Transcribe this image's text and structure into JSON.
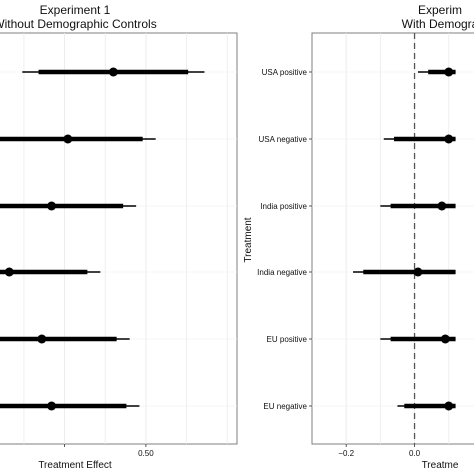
{
  "chart_data": [
    {
      "type": "scatter",
      "title": "Experiment 1",
      "subtitle": "Without Demographic Controls",
      "xlabel": "Treatment Effect",
      "ylabel": "",
      "x_ticks": [
        0.25,
        0.5
      ],
      "x_tick_labels": [
        "",
        "0.50"
      ],
      "categories": [
        "USA positive",
        "USA negative",
        "India positive",
        "India negative",
        "EU positive",
        "EU negative"
      ],
      "estimates": [
        0.4,
        0.26,
        0.21,
        0.08,
        0.18,
        0.21
      ],
      "ci_inner": [
        [
          0.17,
          0.63
        ],
        [
          0.0,
          0.49
        ],
        [
          0.0,
          0.43
        ],
        [
          0.0,
          0.32
        ],
        [
          0.0,
          0.41
        ],
        [
          0.0,
          0.44
        ]
      ],
      "ci_outer": [
        [
          0.12,
          0.68
        ],
        [
          0.0,
          0.53
        ],
        [
          0.0,
          0.47
        ],
        [
          0.0,
          0.36
        ],
        [
          0.0,
          0.45
        ],
        [
          0.0,
          0.48
        ]
      ],
      "zero_line": false,
      "grid": true
    },
    {
      "type": "scatter",
      "title": "Experim",
      "subtitle": "With Demogra",
      "xlabel": "Treatme",
      "ylabel": "Treatment",
      "x_ticks": [
        -0.2,
        0.0
      ],
      "x_tick_labels": [
        "−0.2",
        "0.0"
      ],
      "categories": [
        "USA positive",
        "USA negative",
        "India positive",
        "India negative",
        "EU positive",
        "EU negative"
      ],
      "estimates": [
        0.1,
        0.1,
        0.08,
        0.01,
        0.09,
        0.1
      ],
      "ci_inner": [
        [
          0.04,
          0.12
        ],
        [
          -0.06,
          0.12
        ],
        [
          -0.07,
          0.12
        ],
        [
          -0.15,
          0.12
        ],
        [
          -0.07,
          0.12
        ],
        [
          -0.03,
          0.12
        ]
      ],
      "ci_outer": [
        [
          0.01,
          0.12
        ],
        [
          -0.09,
          0.12
        ],
        [
          -0.1,
          0.12
        ],
        [
          -0.18,
          0.12
        ],
        [
          -0.1,
          0.12
        ],
        [
          -0.05,
          0.12
        ]
      ],
      "zero_line": true,
      "grid": true
    }
  ]
}
